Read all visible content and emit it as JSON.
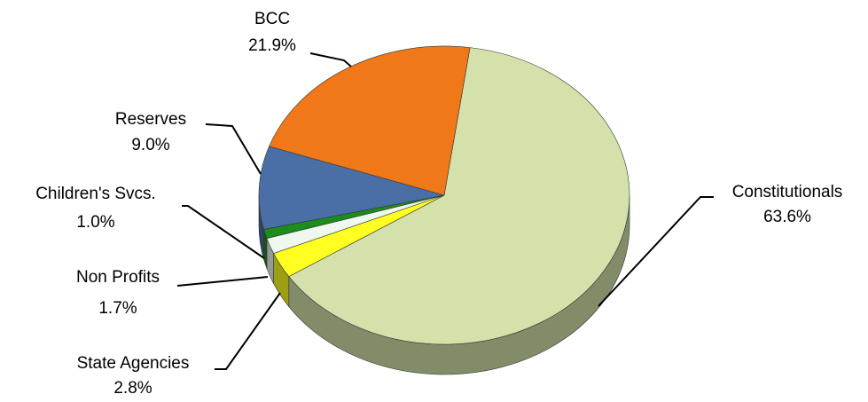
{
  "chart_data": {
    "type": "pie",
    "categories": [
      "Constitutionals",
      "State Agencies",
      "Non Profits",
      "Children's Svcs.",
      "Reserves",
      "BCC"
    ],
    "values": [
      63.6,
      2.8,
      1.7,
      1.0,
      9.0,
      21.9
    ],
    "value_labels": [
      "63.6%",
      "2.8%",
      "1.7%",
      "1.0%",
      "9.0%",
      "21.9%"
    ],
    "colors": [
      "#d4e1aa",
      "#ffff22",
      "#eef8ee",
      "#1c8c1c",
      "#4a6ea6",
      "#f07818"
    ]
  }
}
